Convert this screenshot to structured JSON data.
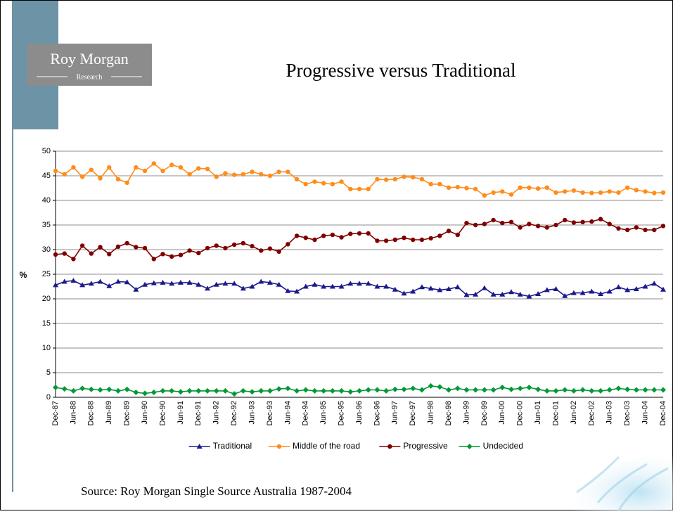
{
  "logo": {
    "name": "Roy Morgan",
    "tagline": "Research"
  },
  "chart_data": {
    "type": "line",
    "title": "Progressive versus Traditional",
    "y_label": "%",
    "source": "Source: Roy Morgan Single Source Australia 1987-2004",
    "categories": [
      "Dec-87",
      null,
      "Jun-88",
      null,
      "Dec-88",
      null,
      "Jun-89",
      null,
      "Dec-89",
      null,
      "Jun-90",
      null,
      "Dec-90",
      null,
      "Jun-91",
      null,
      "Dec-91",
      null,
      "Jun-92",
      null,
      "Dec-92",
      null,
      "Jun-93",
      null,
      "Dec-93",
      null,
      "Jun-94",
      null,
      "Dec-94",
      null,
      "Jun-95",
      null,
      "Dec-95",
      null,
      "Jun-96",
      null,
      "Dec-96",
      null,
      "Jun-97",
      null,
      "Dec-97",
      null,
      "Jun-98",
      null,
      "Dec-98",
      null,
      "Jun-99",
      null,
      "Dec-99",
      null,
      "Jun-00",
      null,
      "Dec-00",
      null,
      "Jun-01",
      null,
      "Dec-01",
      null,
      "Jun-02",
      null,
      "Dec-02",
      null,
      "Jun-03",
      null,
      "Dec-03",
      null,
      "Jun-04",
      null,
      "Dec-04"
    ],
    "series": [
      {
        "name": "Traditional",
        "color": "#1a1a8c",
        "marker": "triangle",
        "values": [
          22.8,
          23.5,
          23.7,
          22.8,
          23.1,
          23.5,
          22.6,
          23.5,
          23.4,
          21.9,
          22.9,
          23.2,
          23.3,
          23.1,
          23.3,
          23.3,
          22.9,
          22.1,
          22.9,
          23.1,
          23.1,
          22.1,
          22.5,
          23.5,
          23.3,
          22.9,
          21.6,
          21.5,
          22.5,
          22.9,
          22.5,
          22.5,
          22.5,
          23.1,
          23.1,
          23.1,
          22.5,
          22.5,
          21.9,
          21.1,
          21.5,
          22.4,
          22.1,
          21.8,
          22,
          22.4,
          20.8,
          20.9,
          22.2,
          20.9,
          20.9,
          21.4,
          20.9,
          20.5,
          21,
          21.8,
          22,
          20.6,
          21.2,
          21.2,
          21.5,
          21,
          21.5,
          22.4,
          21.8,
          22,
          22.5,
          23.1,
          21.9
        ]
      },
      {
        "name": "Middle of the road",
        "color": "#ff8c1a",
        "marker": "circle",
        "values": [
          46,
          45.3,
          46.7,
          44.8,
          46.2,
          44.5,
          46.7,
          44.3,
          43.6,
          46.7,
          46,
          47.5,
          46,
          47.2,
          46.7,
          45.3,
          46.5,
          46.4,
          44.8,
          45.5,
          45.2,
          45.3,
          45.8,
          45.3,
          45,
          45.8,
          45.8,
          44.3,
          43.3,
          43.8,
          43.5,
          43.3,
          43.8,
          42.3,
          42.3,
          42.3,
          44.3,
          44.2,
          44.3,
          44.8,
          44.7,
          44.3,
          43.3,
          43.3,
          42.6,
          42.7,
          42.5,
          42.3,
          41,
          41.6,
          41.8,
          41.2,
          42.6,
          42.6,
          42.4,
          42.6,
          41.6,
          41.8,
          42,
          41.6,
          41.5,
          41.6,
          41.8,
          41.6,
          42.6,
          42.1,
          41.8,
          41.5,
          41.6
        ]
      },
      {
        "name": "Progressive",
        "color": "#800000",
        "marker": "circle",
        "values": [
          29,
          29.2,
          28.1,
          30.8,
          29.2,
          30.5,
          29.1,
          30.6,
          31.3,
          30.5,
          30.3,
          28.1,
          29.1,
          28.6,
          28.9,
          29.8,
          29.3,
          30.3,
          30.8,
          30.3,
          31,
          31.3,
          30.7,
          29.8,
          30.2,
          29.6,
          31.1,
          32.8,
          32.4,
          32,
          32.8,
          33,
          32.5,
          33.2,
          33.3,
          33.3,
          31.8,
          31.8,
          32,
          32.4,
          32,
          32,
          32.3,
          32.8,
          33.8,
          33,
          35.4,
          35,
          35.2,
          36,
          35.4,
          35.6,
          34.5,
          35.2,
          34.8,
          34.5,
          35,
          36,
          35.5,
          35.6,
          35.7,
          36.2,
          35.2,
          34.3,
          34,
          34.5,
          34,
          34,
          34.8
        ]
      },
      {
        "name": "Undecided",
        "color": "#009933",
        "marker": "diamond",
        "values": [
          2,
          1.7,
          1.3,
          1.8,
          1.6,
          1.5,
          1.6,
          1.3,
          1.6,
          1,
          0.8,
          1,
          1.3,
          1.3,
          1.1,
          1.3,
          1.3,
          1.3,
          1.3,
          1.3,
          0.7,
          1.3,
          1.1,
          1.3,
          1.3,
          1.7,
          1.8,
          1.3,
          1.5,
          1.3,
          1.3,
          1.3,
          1.3,
          1.1,
          1.3,
          1.5,
          1.5,
          1.3,
          1.6,
          1.6,
          1.8,
          1.5,
          2.3,
          2.1,
          1.5,
          1.8,
          1.5,
          1.5,
          1.5,
          1.5,
          2,
          1.6,
          1.8,
          2,
          1.6,
          1.3,
          1.3,
          1.5,
          1.3,
          1.5,
          1.3,
          1.3,
          1.5,
          1.8,
          1.6,
          1.5,
          1.5,
          1.5,
          1.5
        ]
      }
    ],
    "ylim": [
      0,
      50
    ],
    "yticks": [
      0,
      5,
      10,
      15,
      20,
      25,
      30,
      35,
      40,
      45,
      50
    ],
    "grid": true,
    "legend": "bottom"
  }
}
